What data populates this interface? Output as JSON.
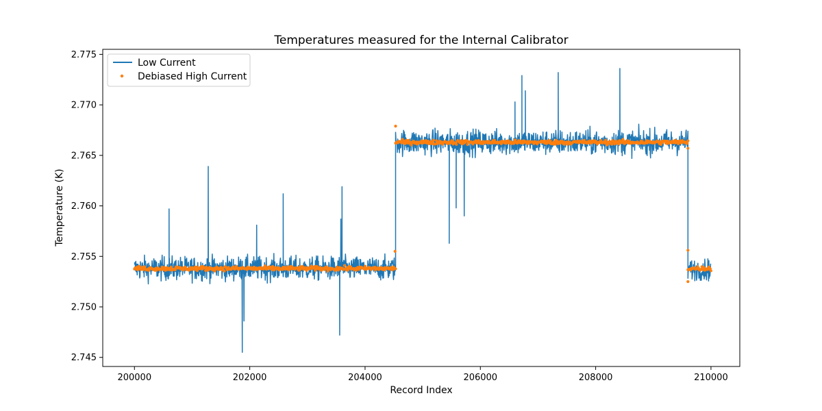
{
  "chart_data": {
    "type": "line",
    "title": "Temperatures measured for the Internal Calibrator",
    "xlabel": "Record Index",
    "ylabel": "Temperature (K)",
    "xlim": [
      199450,
      210500
    ],
    "ylim": [
      2.7441,
      2.7755
    ],
    "xticks": [
      200000,
      202000,
      204000,
      206000,
      208000,
      210000
    ],
    "yticks": [
      2.745,
      2.75,
      2.755,
      2.76,
      2.765,
      2.77,
      2.775
    ],
    "grid": false,
    "legend_position": "top-left",
    "series": [
      {
        "name": "Low Current",
        "style": "line",
        "color": "#1f77b4",
        "segments": [
          {
            "x_start": 200000,
            "x_end": 204530,
            "mean": 2.7538,
            "band": [
              2.7518,
              2.7555
            ]
          },
          {
            "x_start": 204530,
            "x_end": 209600,
            "mean": 2.7663,
            "band": [
              2.7643,
              2.7682
            ]
          },
          {
            "x_start": 209600,
            "x_end": 210000,
            "mean": 2.7537,
            "band": [
              2.752,
              2.7553
            ]
          }
        ],
        "spikes": [
          {
            "x": 200600,
            "y": 2.7597
          },
          {
            "x": 201280,
            "y": 2.7639
          },
          {
            "x": 201870,
            "y": 2.7455
          },
          {
            "x": 201900,
            "y": 2.7486
          },
          {
            "x": 202120,
            "y": 2.7581
          },
          {
            "x": 202580,
            "y": 2.7612
          },
          {
            "x": 203560,
            "y": 2.7472
          },
          {
            "x": 203580,
            "y": 2.7587
          },
          {
            "x": 203600,
            "y": 2.7619
          },
          {
            "x": 205460,
            "y": 2.7563
          },
          {
            "x": 205580,
            "y": 2.7598
          },
          {
            "x": 205720,
            "y": 2.759
          },
          {
            "x": 206600,
            "y": 2.7703
          },
          {
            "x": 206720,
            "y": 2.7729
          },
          {
            "x": 206780,
            "y": 2.7714
          },
          {
            "x": 207350,
            "y": 2.7732
          },
          {
            "x": 208420,
            "y": 2.7736
          }
        ]
      },
      {
        "name": "Debiased High Current",
        "style": "scatter",
        "color": "#ff7f0e",
        "segments": [
          {
            "x_start": 200000,
            "x_end": 204530,
            "mean": 2.7538
          },
          {
            "x_start": 204530,
            "x_end": 209600,
            "mean": 2.7663
          },
          {
            "x_start": 209600,
            "x_end": 210000,
            "mean": 2.7538
          }
        ],
        "outliers": [
          {
            "x": 204520,
            "y": 2.7555
          },
          {
            "x": 204530,
            "y": 2.7679
          },
          {
            "x": 209600,
            "y": 2.7556
          },
          {
            "x": 209600,
            "y": 2.7525
          },
          {
            "x": 209600,
            "y": 2.7657
          }
        ]
      }
    ]
  }
}
